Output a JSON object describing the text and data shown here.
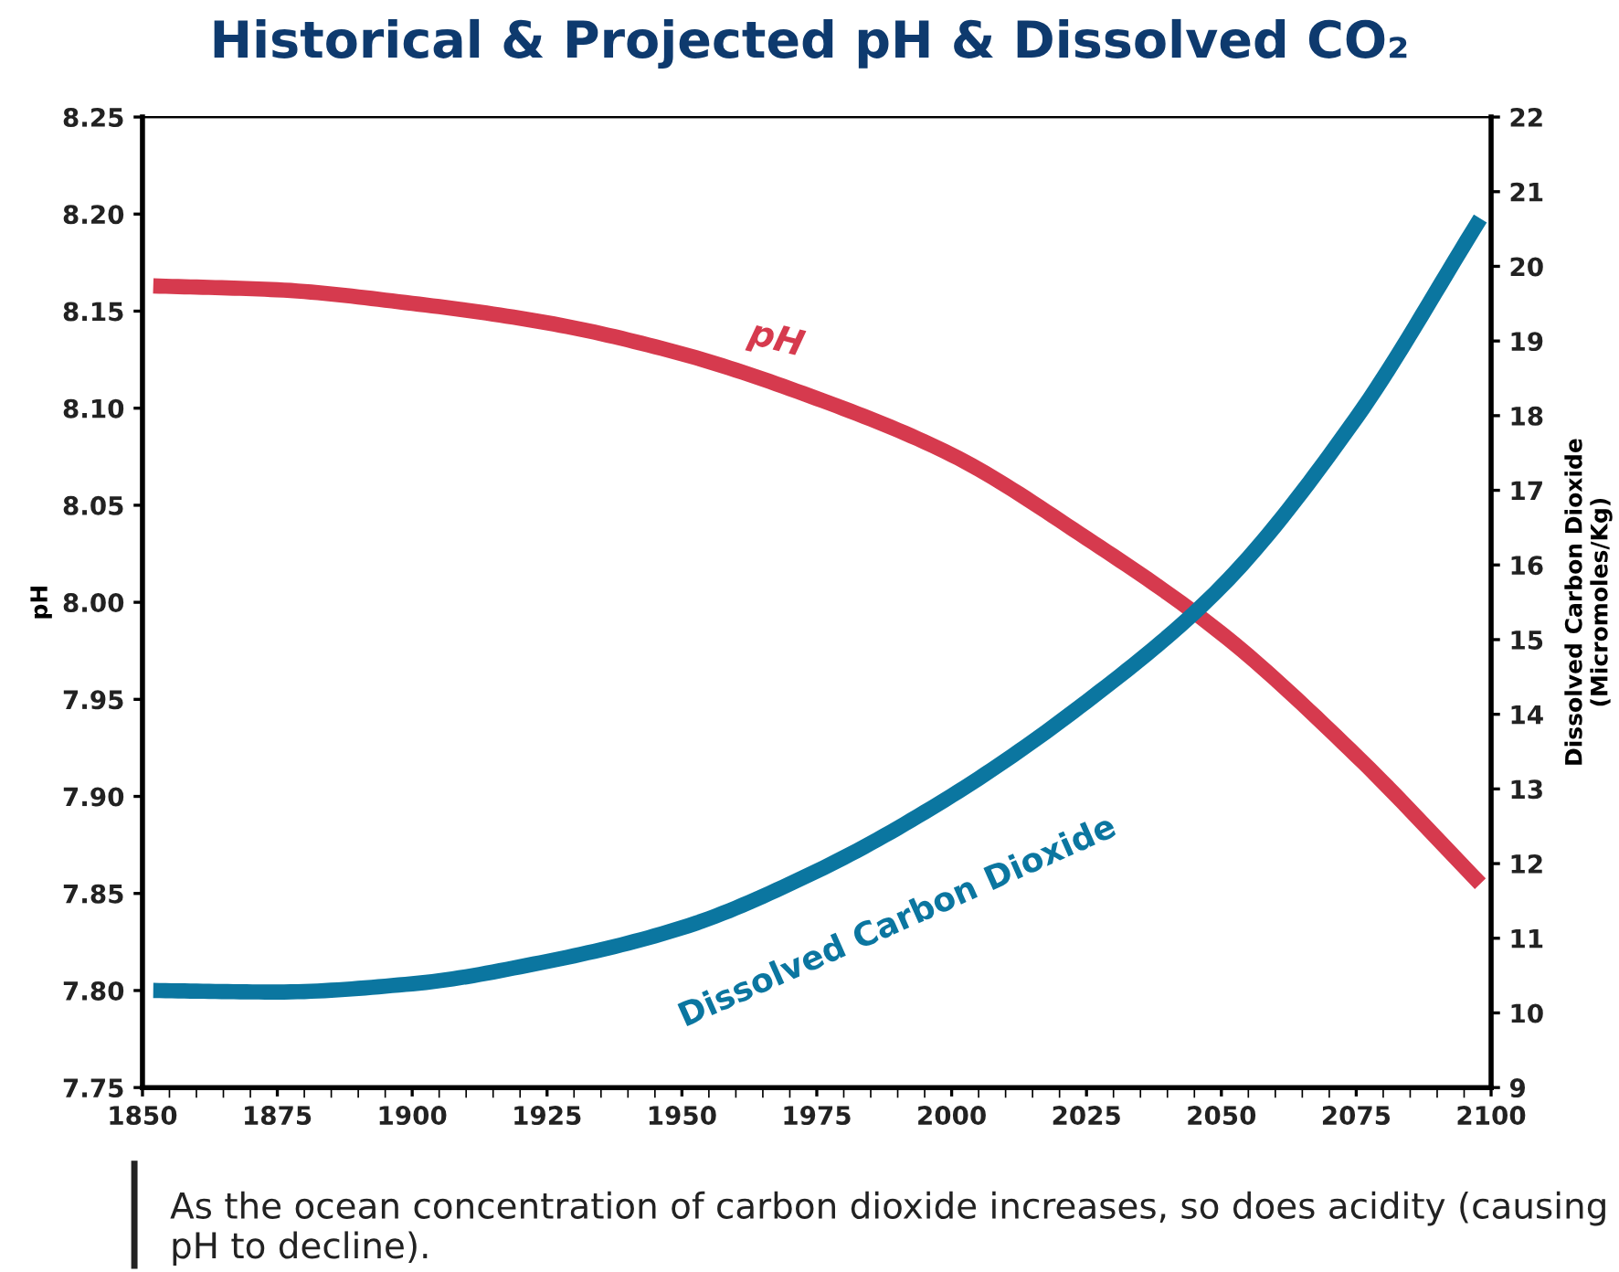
{
  "chart_data": {
    "type": "line",
    "title": "Historical & Projected pH & Dissolved CO₂",
    "ylabel": "pH",
    "y2label": "Dissolved Carbon Dioxide\n(Micromoles/Kg)",
    "x": [
      1852,
      1875,
      1900,
      1925,
      1950,
      1975,
      2000,
      2025,
      2050,
      2075,
      2098
    ],
    "series": [
      {
        "name": "pH",
        "color": "#d63a4e",
        "values": [
          8.163,
          8.161,
          8.154,
          8.144,
          8.128,
          8.105,
          8.076,
          8.033,
          7.984,
          7.921,
          7.855
        ]
      },
      {
        "name": "Dissolved Carbon Dioxide",
        "color": "#0b76a0",
        "axis": "y2",
        "values": [
          10.3,
          10.28,
          10.39,
          10.69,
          11.14,
          11.9,
          12.91,
          14.17,
          15.71,
          17.97,
          20.64
        ]
      }
    ],
    "xlim": [
      1850,
      2100
    ],
    "xticks": [
      1850,
      1875,
      1900,
      1925,
      1950,
      1975,
      2000,
      2025,
      2050,
      2075,
      2100
    ],
    "ylim": [
      7.75,
      8.25
    ],
    "yticks": [
      {
        "value": 7.75,
        "label": "7.75"
      },
      {
        "value": 7.8,
        "label": "7.80"
      },
      {
        "value": 7.85,
        "label": "7.85"
      },
      {
        "value": 7.9,
        "label": "7.90"
      },
      {
        "value": 7.95,
        "label": "7.95"
      },
      {
        "value": 8.0,
        "label": "8.00"
      },
      {
        "value": 8.05,
        "label": "8.05"
      },
      {
        "value": 8.1,
        "label": "8.10"
      },
      {
        "value": 8.15,
        "label": "8.15"
      },
      {
        "value": 8.2,
        "label": "8.20"
      },
      {
        "value": 8.25,
        "label": "8.25"
      }
    ],
    "y2lim": [
      9,
      22
    ],
    "y2ticks": [
      9,
      10,
      11,
      12,
      13,
      14,
      15,
      16,
      17,
      18,
      19,
      20,
      21,
      22
    ],
    "grid": false,
    "legend": false,
    "line_style": "solid",
    "annotations": [
      "As the ocean concentration of carbon dioxide increases, so does acidity (causing pH to decline)."
    ]
  }
}
